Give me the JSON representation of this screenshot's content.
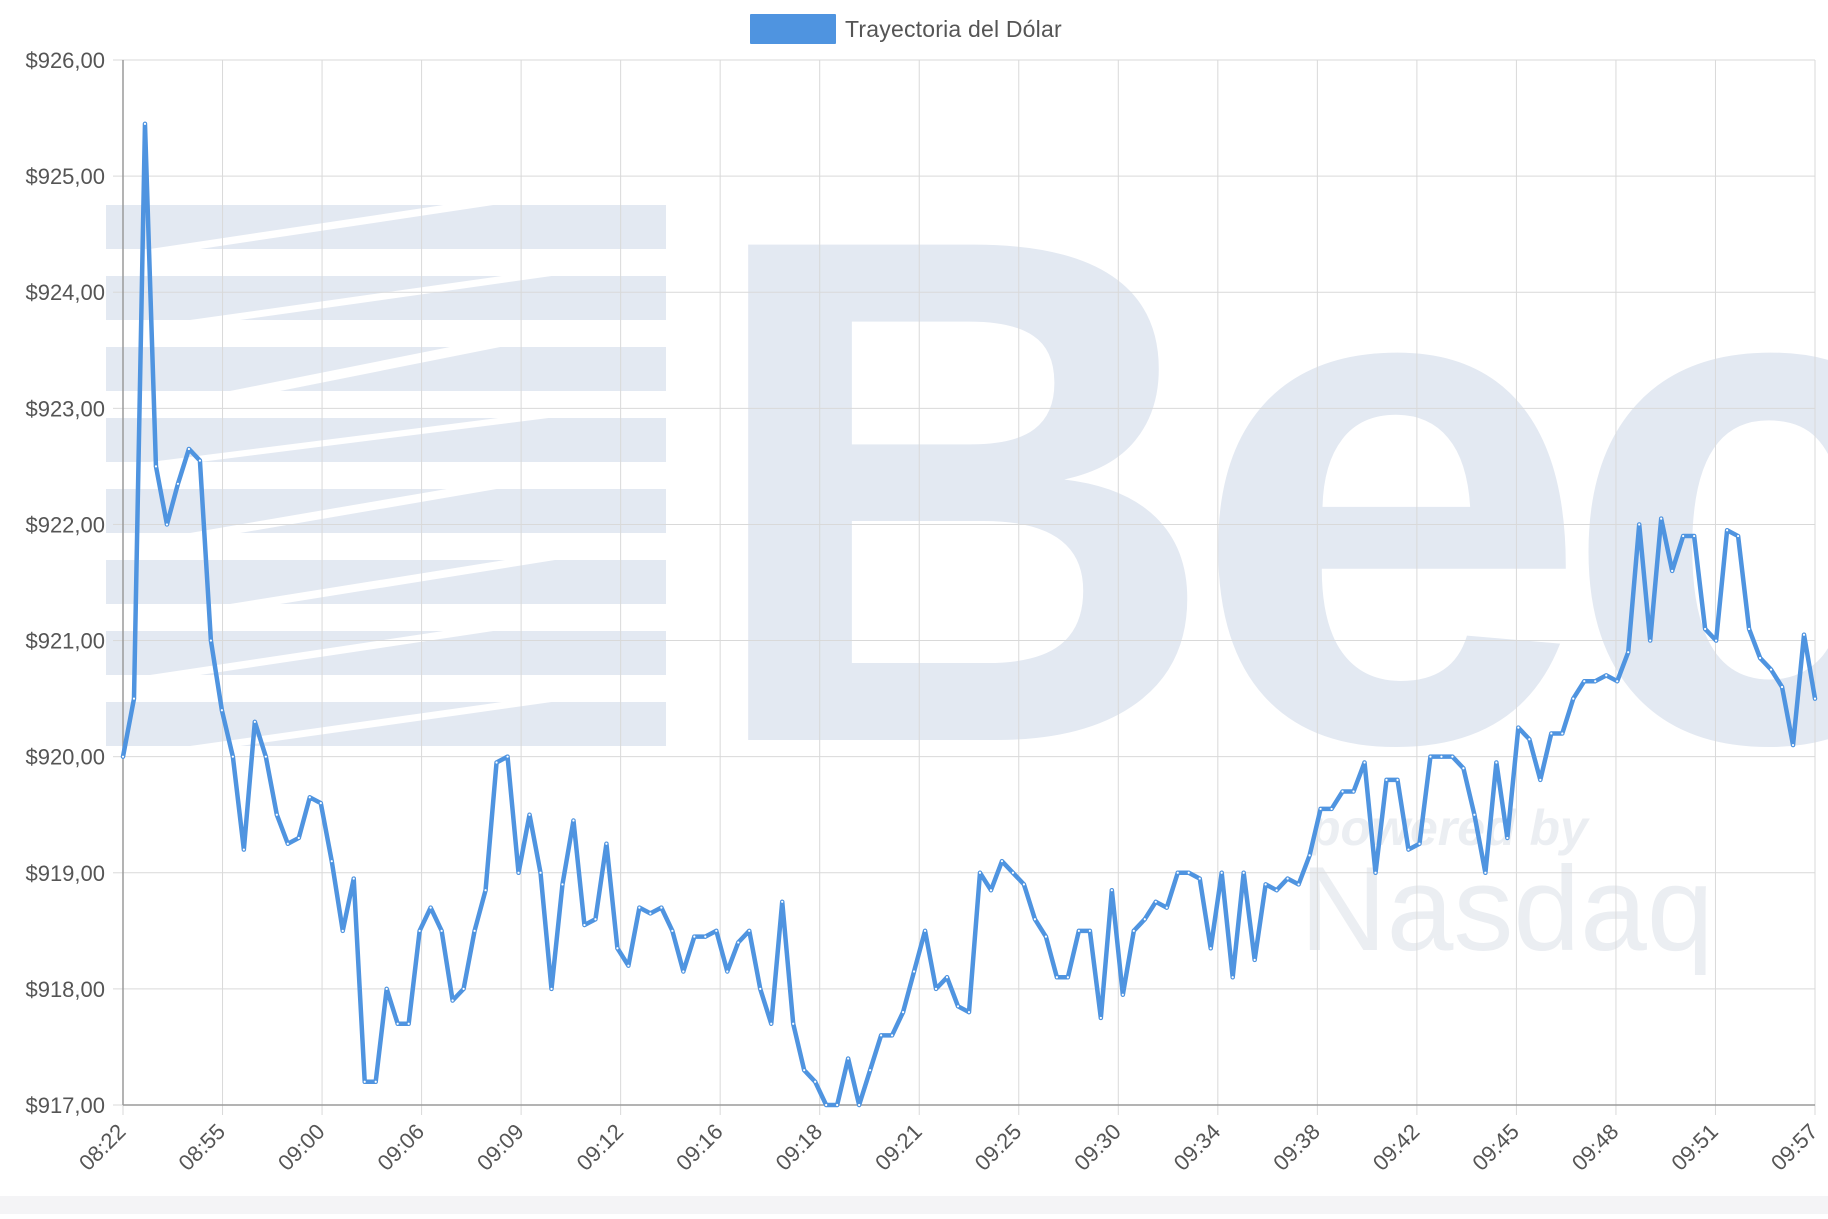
{
  "colors": {
    "line": "#4f94e0",
    "grid": "#d9d9d9",
    "axis": "#9a9a9a",
    "tick_text": "#555555",
    "watermark": "#e3e9f2"
  },
  "watermark": {
    "brand": "Bec",
    "tagline_1": "powered by",
    "tagline_2": "Nasdaq"
  },
  "chart_data": {
    "type": "line",
    "title": "",
    "xlabel": "",
    "ylabel": "",
    "legend": {
      "position": "top-center"
    },
    "grid": true,
    "ylim": [
      917,
      926
    ],
    "y_ticks": [
      "$917,00",
      "$918,00",
      "$919,00",
      "$920,00",
      "$921,00",
      "$922,00",
      "$923,00",
      "$924,00",
      "$925,00",
      "$926,00"
    ],
    "x_ticks": [
      "08:22",
      "08:55",
      "09:00",
      "09:06",
      "09:09",
      "09:12",
      "09:16",
      "09:18",
      "09:21",
      "09:25",
      "09:30",
      "09:34",
      "09:38",
      "09:42",
      "09:45",
      "09:48",
      "09:51",
      "09:57"
    ],
    "series": [
      {
        "name": "Trayectoria del Dólar",
        "values": [
          920.0,
          920.5,
          925.45,
          922.5,
          922.0,
          922.35,
          922.65,
          922.55,
          921.0,
          920.4,
          920.0,
          919.2,
          920.3,
          920.0,
          919.5,
          919.25,
          919.3,
          919.65,
          919.6,
          919.1,
          918.5,
          918.95,
          917.2,
          917.2,
          918.0,
          917.7,
          917.7,
          918.5,
          918.7,
          918.5,
          917.9,
          918.0,
          918.5,
          918.85,
          919.95,
          920.0,
          919.0,
          919.5,
          919.0,
          918.0,
          918.9,
          919.45,
          918.55,
          918.6,
          919.25,
          918.35,
          918.2,
          918.7,
          918.65,
          918.7,
          918.5,
          918.15,
          918.45,
          918.45,
          918.5,
          918.15,
          918.4,
          918.5,
          918.0,
          917.7,
          918.75,
          917.7,
          917.3,
          917.2,
          917.0,
          917.0,
          917.4,
          917.0,
          917.3,
          917.6,
          917.6,
          917.8,
          918.15,
          918.5,
          918.0,
          918.1,
          917.85,
          917.8,
          919.0,
          918.85,
          919.1,
          919.0,
          918.9,
          918.6,
          918.45,
          918.1,
          918.1,
          918.5,
          918.5,
          917.75,
          918.85,
          917.95,
          918.5,
          918.6,
          918.75,
          918.7,
          919.0,
          919.0,
          918.95,
          918.35,
          919.0,
          918.1,
          919.0,
          918.25,
          918.9,
          918.85,
          918.95,
          918.9,
          919.15,
          919.55,
          919.55,
          919.7,
          919.7,
          919.95,
          919.0,
          919.8,
          919.8,
          919.2,
          919.25,
          920.0,
          920.0,
          920.0,
          919.9,
          919.5,
          919.0,
          919.95,
          919.3,
          920.25,
          920.15,
          919.8,
          920.2,
          920.2,
          920.5,
          920.65,
          920.65,
          920.7,
          920.65,
          920.9,
          922.0,
          921.0,
          922.05,
          921.6,
          921.9,
          921.9,
          921.1,
          921.0,
          921.95,
          921.9,
          921.1,
          920.85,
          920.75,
          920.6,
          920.1,
          921.05,
          920.5
        ]
      }
    ]
  }
}
